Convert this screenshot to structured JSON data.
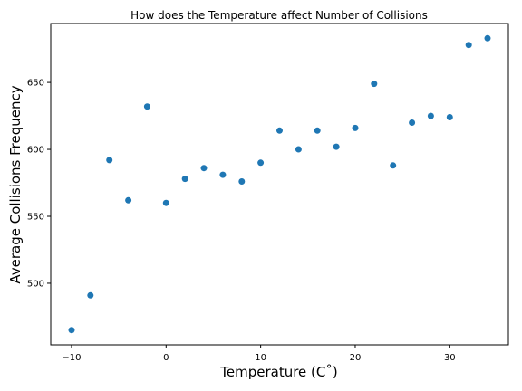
{
  "chart_data": {
    "type": "scatter",
    "title": "How does the Temperature affect Number of Collisions",
    "xlabel": "Temperature (C$^\\circ$)",
    "xlabel_display": "Temperature (C˚)",
    "ylabel": "Average Collisions Frequency",
    "xlim": [
      -12.2,
      36.2
    ],
    "ylim": [
      454,
      694
    ],
    "xticks": [
      -10,
      0,
      10,
      20,
      30
    ],
    "yticks": [
      500,
      550,
      600,
      650
    ],
    "grid": false,
    "marker_color": "#1f77b4",
    "points": [
      {
        "x": -10,
        "y": 465
      },
      {
        "x": -8,
        "y": 491
      },
      {
        "x": -6,
        "y": 592
      },
      {
        "x": -4,
        "y": 562
      },
      {
        "x": -2,
        "y": 632
      },
      {
        "x": 0,
        "y": 560
      },
      {
        "x": 2,
        "y": 578
      },
      {
        "x": 4,
        "y": 586
      },
      {
        "x": 6,
        "y": 581
      },
      {
        "x": 8,
        "y": 576
      },
      {
        "x": 10,
        "y": 590
      },
      {
        "x": 12,
        "y": 614
      },
      {
        "x": 14,
        "y": 600
      },
      {
        "x": 16,
        "y": 614
      },
      {
        "x": 18,
        "y": 602
      },
      {
        "x": 20,
        "y": 616
      },
      {
        "x": 22,
        "y": 649
      },
      {
        "x": 24,
        "y": 588
      },
      {
        "x": 26,
        "y": 620
      },
      {
        "x": 28,
        "y": 625
      },
      {
        "x": 30,
        "y": 624
      },
      {
        "x": 32,
        "y": 678
      },
      {
        "x": 34,
        "y": 683
      }
    ]
  }
}
